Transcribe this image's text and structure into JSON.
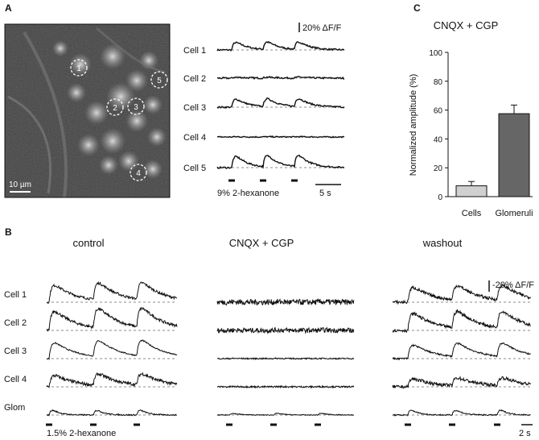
{
  "panels": {
    "a": "A",
    "b": "B",
    "c": "C"
  },
  "panel_a": {
    "scale_bar_label": "10 µm",
    "cell_markers": [
      "1",
      "2",
      "3",
      "4",
      "5"
    ],
    "trace_labels": [
      "Cell 1",
      "Cell 2",
      "Cell 3",
      "Cell 4",
      "Cell 5"
    ],
    "dff_scale": "20% ΔF/F",
    "stimulus_label": "9% 2-hexanone",
    "time_scale": "5 s"
  },
  "panel_b": {
    "conditions": [
      "control",
      "CNQX + CGP",
      "washout"
    ],
    "row_labels": [
      "Cell 1",
      "Cell 2",
      "Cell 3",
      "Cell 4",
      "Glom"
    ],
    "dff_scale": "-20% ΔF/F",
    "stimulus_label": "1.5% 2-hexanone",
    "time_scale": "2 s"
  },
  "chart_data": {
    "type": "bar",
    "title": "CNQX + CGP",
    "ylabel": "Normalized amplitude (%)",
    "xlabel": "",
    "categories": [
      "Cells",
      "Glomeruli"
    ],
    "values": [
      7.5,
      57.5
    ],
    "errors": [
      3,
      6
    ],
    "bar_colors": [
      "#d0d0d0",
      "#666666"
    ],
    "ylim": [
      0,
      100
    ],
    "yticks": [
      "0",
      "20",
      "40",
      "60",
      "80",
      "100"
    ]
  }
}
